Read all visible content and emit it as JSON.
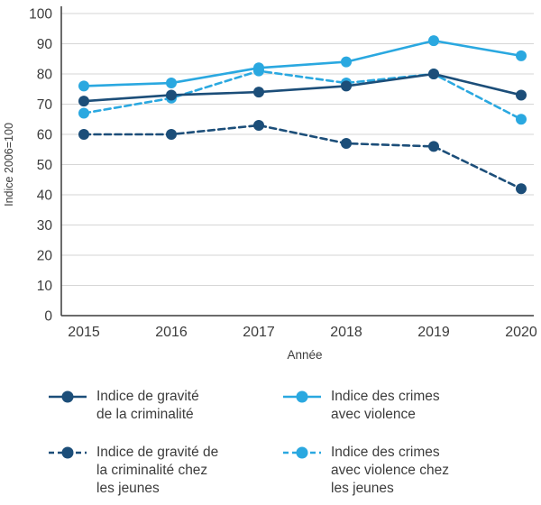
{
  "chart_data": {
    "type": "line",
    "x": [
      2015,
      2016,
      2017,
      2018,
      2019,
      2020
    ],
    "xlabel": "Année",
    "ylabel": "Indice 2006=100",
    "ylim": [
      0,
      100
    ],
    "ytick_step": 10,
    "grid": true,
    "legend_position": "bottom",
    "series": [
      {
        "name": "Indice de gravité de la criminalité",
        "label_lines": [
          "Indice de gravité",
          "de la criminalité"
        ],
        "color_key": "dark",
        "dash": false,
        "values": [
          71,
          73,
          74,
          76,
          80,
          73
        ]
      },
      {
        "name": "Indice des crimes avec violence",
        "label_lines": [
          "Indice des crimes",
          "avec violence"
        ],
        "color_key": "light",
        "dash": false,
        "values": [
          76,
          77,
          82,
          84,
          91,
          86
        ]
      },
      {
        "name": "Indice de gravité de la criminalité chez les jeunes",
        "label_lines": [
          "Indice de gravité de",
          "la criminalité chez",
          "les jeunes"
        ],
        "color_key": "dark",
        "dash": true,
        "values": [
          60,
          60,
          63,
          57,
          56,
          42
        ]
      },
      {
        "name": "Indice des crimes avec violence chez les jeunes",
        "label_lines": [
          "Indice des crimes",
          "avec violence chez",
          "les jeunes"
        ],
        "color_key": "light",
        "dash": true,
        "values": [
          67,
          72,
          81,
          77,
          80,
          65
        ]
      }
    ]
  },
  "colors": {
    "dark": "#1c4e79",
    "light": "#2aa8e0",
    "grid": "#d6d6d6",
    "axis": "#3a3a3a",
    "text": "#3c3c3c"
  }
}
